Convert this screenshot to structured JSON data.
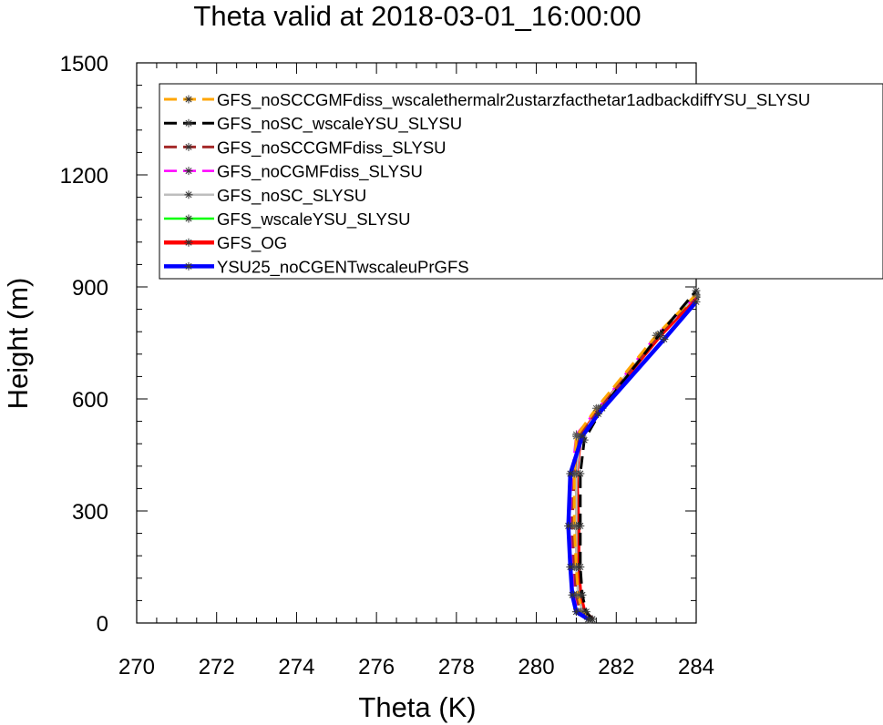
{
  "chart_data": {
    "type": "line",
    "title": "Theta valid at 2018-03-01_16:00:00",
    "xlabel": "Theta (K)",
    "ylabel": "Height (m)",
    "xlim": [
      270,
      284
    ],
    "ylim": [
      0,
      1500
    ],
    "xticks": [
      270,
      272,
      274,
      276,
      278,
      280,
      282,
      284
    ],
    "yticks": [
      0,
      300,
      600,
      900,
      1200,
      1500
    ],
    "grid": false,
    "legend_position": "top-right",
    "series": [
      {
        "name": "GFS_noSCCGMFdiss_wscalethermalr2ustarzfacthetar1adbackdiffYSU_SLYSU",
        "color": "#ffa500",
        "dash": "dash",
        "x": [
          281.35,
          281.15,
          281.05,
          281.0,
          280.95,
          280.95,
          281.0,
          281.5,
          283.0,
          284.0
        ],
        "y": [
          10,
          30,
          75,
          150,
          260,
          400,
          500,
          575,
          770,
          880
        ]
      },
      {
        "name": "GFS_noSC_wscaleYSU_SLYSU",
        "color": "#000000",
        "dash": "dash",
        "x": [
          281.4,
          281.25,
          281.15,
          281.1,
          281.1,
          281.1,
          281.2,
          281.65,
          283.1,
          284.0
        ],
        "y": [
          10,
          30,
          75,
          150,
          260,
          400,
          490,
          575,
          775,
          890
        ]
      },
      {
        "name": "GFS_noSCCGMFdiss_SLYSU",
        "color": "#a52a2a",
        "dash": "dash",
        "x": [
          281.35,
          281.1,
          281.0,
          280.95,
          280.9,
          280.95,
          281.05,
          281.6,
          283.05,
          284.0
        ],
        "y": [
          10,
          30,
          75,
          150,
          260,
          400,
          500,
          575,
          770,
          878
        ]
      },
      {
        "name": "GFS_noCGMFdiss_SLYSU",
        "color": "#ff00ff",
        "dash": "dash",
        "x": [
          281.3,
          281.05,
          280.95,
          280.9,
          280.85,
          280.9,
          281.0,
          281.55,
          283.0,
          284.0
        ],
        "y": [
          10,
          30,
          75,
          150,
          260,
          400,
          505,
          575,
          770,
          875
        ]
      },
      {
        "name": "GFS_noSC_SLYSU",
        "color": "#bebebe",
        "dash": "solid",
        "x": [
          281.35,
          281.15,
          281.05,
          281.0,
          281.0,
          281.0,
          281.1,
          281.6,
          283.05,
          284.0
        ],
        "y": [
          10,
          30,
          75,
          150,
          260,
          400,
          500,
          575,
          770,
          878
        ]
      },
      {
        "name": "GFS_wscaleYSU_SLYSU",
        "color": "#00ff00",
        "dash": "solid",
        "x": [
          281.35,
          281.15,
          281.05,
          281.0,
          281.0,
          281.0,
          281.1,
          281.6,
          283.05,
          284.0
        ],
        "y": [
          10,
          30,
          75,
          150,
          260,
          400,
          500,
          575,
          770,
          878
        ]
      },
      {
        "name": "GFS_OG",
        "color": "#ff0000",
        "dash": "solid",
        "x": [
          281.4,
          281.2,
          281.1,
          281.05,
          281.05,
          281.0,
          281.1,
          281.6,
          283.1,
          284.0
        ],
        "y": [
          10,
          30,
          75,
          150,
          260,
          400,
          500,
          575,
          770,
          872
        ]
      },
      {
        "name": "YSU25_noCGENTwscaleuPrGFS",
        "color": "#0000ff",
        "dash": "solid",
        "x": [
          281.3,
          281.0,
          280.9,
          280.85,
          280.8,
          280.85,
          281.15,
          281.55,
          283.2,
          284.0
        ],
        "y": [
          10,
          30,
          75,
          150,
          260,
          400,
          500,
          560,
          760,
          860
        ]
      }
    ]
  }
}
